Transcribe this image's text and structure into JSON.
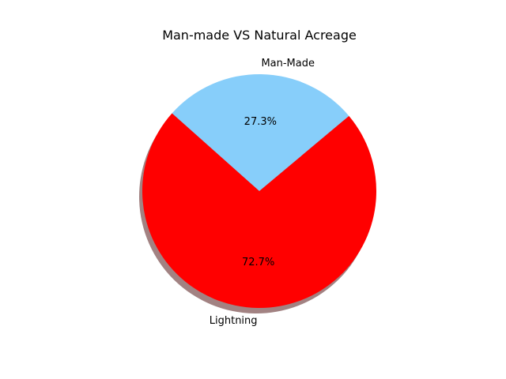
{
  "chart_data": {
    "type": "pie",
    "title": "Man-made VS Natural Acreage",
    "slices": [
      {
        "label": "Man-Made",
        "value": 27.3,
        "pct_label": "27.3%",
        "color": "#87CEFA"
      },
      {
        "label": "Lightning",
        "value": 72.7,
        "pct_label": "72.7%",
        "color": "#FF0000"
      }
    ],
    "shadow": true,
    "start_angle_deg": 40
  }
}
